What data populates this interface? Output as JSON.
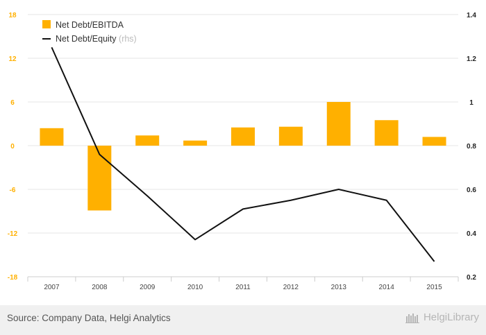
{
  "chart_data": {
    "type": "bar",
    "categories": [
      "2007",
      "2008",
      "2009",
      "2010",
      "2011",
      "2012",
      "2013",
      "2014",
      "2015"
    ],
    "series": [
      {
        "name": "Net Debt/EBITDA",
        "type": "bar",
        "axis": "left",
        "color": "#ffb000",
        "values": [
          2.4,
          -8.9,
          1.4,
          0.7,
          2.5,
          2.6,
          6.0,
          3.5,
          1.2
        ]
      },
      {
        "name": "Net Debt/Equity",
        "name_suffix": "(rhs)",
        "type": "line",
        "axis": "right",
        "color": "#111111",
        "values": [
          1.25,
          0.76,
          0.57,
          0.37,
          0.51,
          0.55,
          0.6,
          0.55,
          0.27
        ]
      }
    ],
    "y_left": {
      "min": -18,
      "max": 18,
      "ticks": [
        "18",
        "12",
        "6",
        "0",
        "-6",
        "-12",
        "-18"
      ],
      "color": "#ffb000"
    },
    "y_right": {
      "min": 0.2,
      "max": 1.4,
      "ticks": [
        "1.4",
        "1.2",
        "1",
        "0.8",
        "0.6",
        "0.4",
        "0.2"
      ]
    },
    "grid": true,
    "legend": "top-left"
  },
  "footer": {
    "source": "Source: Company Data, Helgi Analytics",
    "brand": "HelgiLibrary"
  }
}
